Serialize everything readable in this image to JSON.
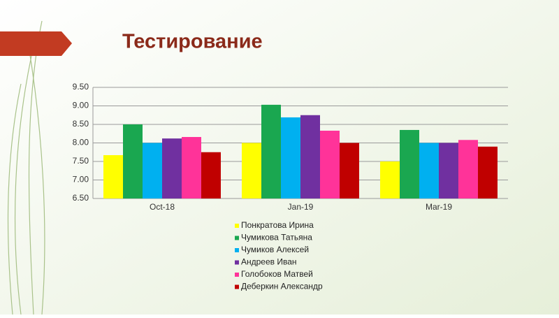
{
  "chart_data": {
    "type": "bar",
    "title": "Тестирование",
    "categories": [
      "Oct-18",
      "Jan-19",
      "Mar-19"
    ],
    "series": [
      {
        "name": "Понкратова Ирина",
        "color": "#ffff00",
        "values": [
          7.67,
          8.0,
          7.5
        ]
      },
      {
        "name": "Чумикова Татьяна",
        "color": "#1aa750",
        "values": [
          8.5,
          9.03,
          8.35
        ]
      },
      {
        "name": "Чумиков Алексей",
        "color": "#00b0f0",
        "values": [
          8.0,
          8.69,
          8.0
        ]
      },
      {
        "name": "Андреев Иван",
        "color": "#7030a0",
        "values": [
          8.12,
          8.75,
          8.0
        ]
      },
      {
        "name": "Голобоков Матвей",
        "color": "#ff3399",
        "values": [
          8.16,
          8.33,
          8.08
        ]
      },
      {
        "name": "Деберкин Александр",
        "color": "#c00000",
        "values": [
          7.75,
          8.0,
          7.9
        ]
      }
    ],
    "ylim": [
      6.5,
      9.5
    ],
    "yticks": [
      {
        "value": 6.5,
        "label": "6.50"
      },
      {
        "value": 7,
        "label": "7.00"
      },
      {
        "value": 7.5,
        "label": "7.50"
      },
      {
        "value": 8,
        "label": "8.00"
      },
      {
        "value": 8.5,
        "label": "8.50"
      },
      {
        "value": 9,
        "label": "9.00"
      },
      {
        "value": 9.5,
        "label": "9.50"
      }
    ],
    "grid": true
  }
}
